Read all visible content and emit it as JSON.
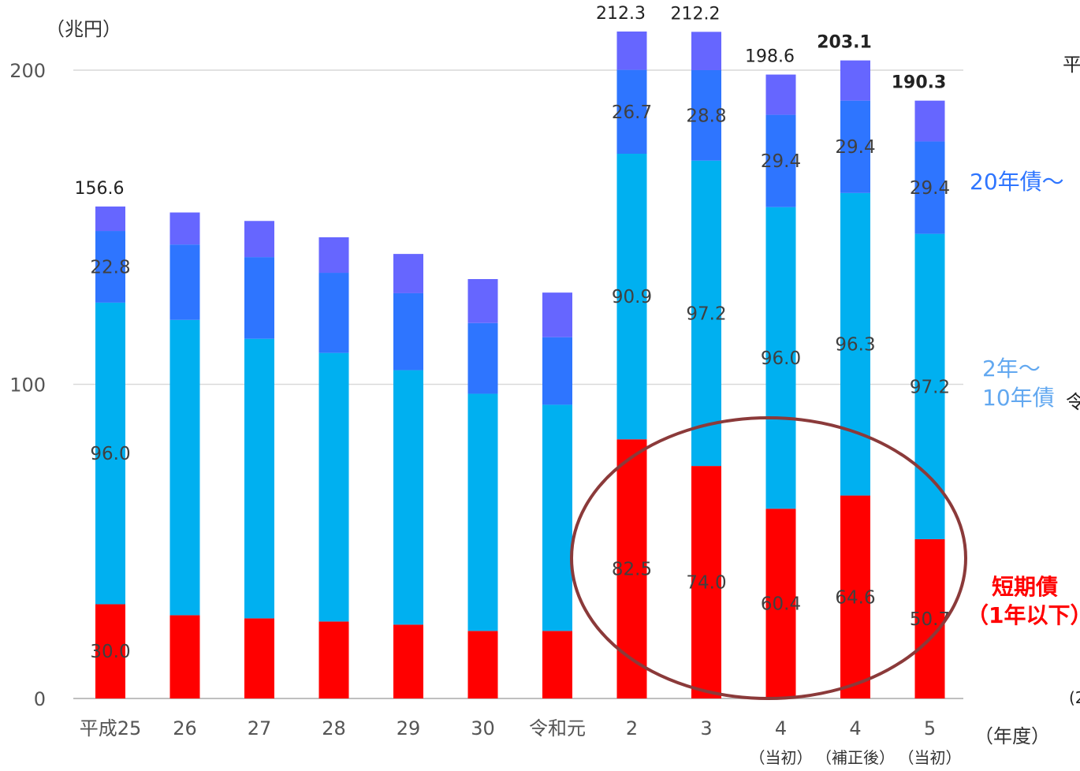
{
  "chart_data": {
    "type": "bar",
    "stacked": true,
    "unit": "（兆円）",
    "x_unit": "（年度）",
    "yticks": [
      0,
      100,
      200
    ],
    "ylim": [
      0,
      212.3
    ],
    "grid": true,
    "categories": [
      "平成25",
      "26",
      "27",
      "28",
      "29",
      "30",
      "令和元",
      "2",
      "3",
      "4",
      "4",
      "5"
    ],
    "sublabels": [
      "",
      "",
      "",
      "",
      "",
      "",
      "",
      "",
      "",
      "（当初）",
      "（補正後）",
      "（当初）"
    ],
    "totals": [
      156.6,
      null,
      null,
      null,
      null,
      null,
      null,
      212.3,
      212.2,
      198.6,
      203.1,
      190.3
    ],
    "totals_bold": [
      false,
      false,
      false,
      false,
      false,
      false,
      false,
      false,
      false,
      false,
      true,
      true
    ],
    "series": [
      {
        "name": "短期債（1年以下）",
        "color": "#ff0000",
        "values": [
          30.0,
          26.5,
          25.5,
          24.5,
          23.5,
          21.5,
          21.5,
          82.5,
          74.0,
          60.4,
          64.6,
          50.7
        ],
        "labels": [
          "30.0",
          "",
          "",
          "",
          "",
          "",
          "",
          "82.5",
          "74.0",
          "60.4",
          "64.6",
          "50.7"
        ]
      },
      {
        "name": "2年～10年債",
        "color": "#00b0f0",
        "values": [
          96.0,
          94.0,
          89.0,
          85.5,
          81.0,
          75.5,
          72.0,
          90.9,
          97.2,
          96.0,
          96.3,
          97.2
        ],
        "labels": [
          "96.0",
          "",
          "",
          "",
          "",
          "",
          "",
          "90.9",
          "97.2",
          "96.0",
          "96.3",
          "97.2"
        ]
      },
      {
        "name": "20年債～",
        "color": "#2e75ff",
        "values": [
          22.8,
          24.0,
          26.0,
          25.5,
          24.5,
          22.5,
          21.5,
          26.7,
          28.8,
          29.4,
          29.4,
          29.4
        ],
        "labels": [
          "22.8",
          "",
          "",
          "",
          "",
          "",
          "",
          "26.7",
          "28.8",
          "29.4",
          "29.4",
          "29.4"
        ]
      },
      {
        "name": "",
        "color": "#6666ff",
        "values": [
          7.8,
          10.2,
          11.5,
          11.3,
          12.5,
          14.0,
          14.2,
          12.2,
          12.2,
          12.8,
          12.8,
          13.0
        ],
        "labels": [
          "",
          "",
          "",
          "",
          "",
          "",
          "",
          "",
          "",
          "",
          "",
          ""
        ]
      }
    ],
    "legend": {
      "placement": "right",
      "items": [
        {
          "text": "20年債～",
          "color": "#2e75ff",
          "bold": false
        },
        {
          "text": "2年～",
          "color": "#62a8f0",
          "bold": false
        },
        {
          "text": "10年債",
          "color": "#62a8f0",
          "bold": false
        },
        {
          "text": "短期債",
          "color": "#ff0000",
          "bold": true
        },
        {
          "text": "（1年以下）",
          "color": "#ff0000",
          "bold": true
        }
      ]
    },
    "annotation": {
      "shape": "ellipse",
      "color": "#8b3a3a"
    },
    "edge_fragments": [
      "平",
      "令",
      "(2"
    ]
  }
}
